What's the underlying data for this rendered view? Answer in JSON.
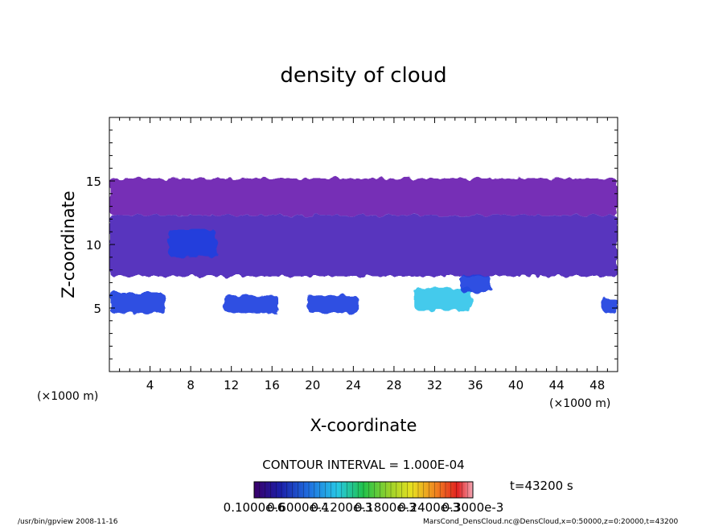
{
  "chart_data": {
    "type": "heatmap",
    "title": "density of cloud",
    "xlabel": "X-coordinate",
    "ylabel": "Z-coordinate",
    "x_unit_left": "(×1000 m)",
    "x_unit_right": "(×1000 m)",
    "xlim": [
      0,
      50
    ],
    "ylim": [
      0,
      20
    ],
    "x_ticks": [
      "4",
      "8",
      "12",
      "16",
      "20",
      "24",
      "28",
      "32",
      "36",
      "40",
      "44",
      "48"
    ],
    "y_ticks": [
      "5",
      "10",
      "15"
    ],
    "contour_interval": "CONTOUR INTERVAL = 1.000E-04",
    "time_label": "t=43200 s",
    "colorbar_labels": [
      "0.1000e-6",
      "0.6000e-4",
      "0.1200e-3",
      "0.1800e-3",
      "0.2400e-3",
      "0.3000e-3"
    ],
    "cloud_regions": [
      {
        "x": [
          0.0,
          50.0
        ],
        "z": [
          12.3,
          15.2
        ],
        "level": "low"
      },
      {
        "x": [
          0.0,
          50.0
        ],
        "z": [
          7.5,
          12.3
        ],
        "level": "low-mid"
      },
      {
        "x": [
          0.0,
          5.5
        ],
        "z": [
          4.6,
          6.2
        ],
        "level": "mid"
      },
      {
        "x": [
          11.3,
          16.7
        ],
        "z": [
          4.6,
          6.0
        ],
        "level": "mid"
      },
      {
        "x": [
          19.5,
          24.5
        ],
        "z": [
          4.6,
          6.0
        ],
        "level": "mid"
      },
      {
        "x": [
          30.0,
          35.7
        ],
        "z": [
          4.8,
          6.6
        ],
        "level": "high"
      },
      {
        "x": [
          5.8,
          10.5
        ],
        "z": [
          9.0,
          11.2
        ],
        "level": "mid"
      },
      {
        "x": [
          34.5,
          37.5
        ],
        "z": [
          6.2,
          7.6
        ],
        "level": "mid"
      },
      {
        "x": [
          48.5,
          50.0
        ],
        "z": [
          4.6,
          5.8
        ],
        "level": "mid"
      }
    ]
  },
  "footer": {
    "left": "/usr/bin/gpview   2008-11-16",
    "right": "MarsCond_DensCloud.nc@DensCloud,x=0:50000,z=0:20000,t=43200"
  },
  "colors": {
    "low": "#6a1fb0",
    "low-mid": "#4a24b8",
    "mid": "#1f3fe0",
    "high": "#35c6ea",
    "frame": "#000000"
  }
}
